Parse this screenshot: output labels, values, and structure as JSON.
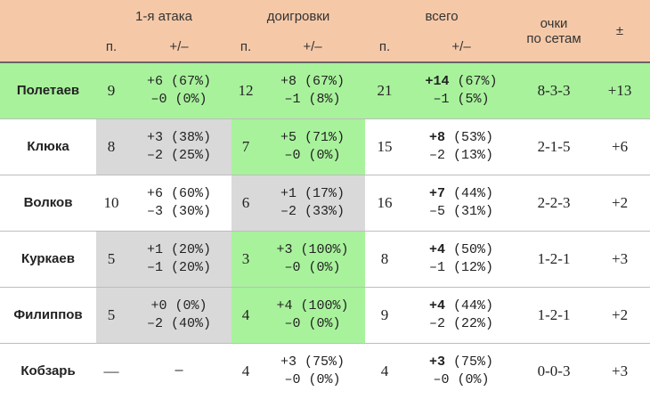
{
  "header": {
    "groups": [
      "1-я атака",
      "доигровки",
      "всего"
    ],
    "sub_n": "п.",
    "sub_pm": "+/–",
    "set_points": "очки\nпо сетам",
    "total": "±"
  },
  "rows": [
    {
      "name": "Полетаев",
      "a_n": "9",
      "a_plus": "+6 (67%)",
      "a_minus": "–0 (0%)",
      "d_n": "12",
      "d_plus": "+8 (67%)",
      "d_minus": "–1 (8%)",
      "t_n": "21",
      "t_plus_bold": "+14",
      "t_plus_rest": " (67%)",
      "t_minus": "–1 (5%)",
      "sets": "8-3-3",
      "total": "+13",
      "fill": "green"
    },
    {
      "name": "Клюка",
      "a_n": "8",
      "a_plus": "+3 (38%)",
      "a_minus": "–2 (25%)",
      "d_n": "7",
      "d_plus": "+5 (71%)",
      "d_minus": "–0 (0%)",
      "t_n": "15",
      "t_plus_bold": "+8",
      "t_plus_rest": " (53%)",
      "t_minus": "–2 (13%)",
      "sets": "2-1-5",
      "total": "+6",
      "fill": "attack-gray-digs-green"
    },
    {
      "name": "Волков",
      "a_n": "10",
      "a_plus": "+6 (60%)",
      "a_minus": "–3 (30%)",
      "d_n": "6",
      "d_plus": "+1 (17%)",
      "d_minus": "–2 (33%)",
      "t_n": "16",
      "t_plus_bold": "+7",
      "t_plus_rest": " (44%)",
      "t_minus": "–5 (31%)",
      "sets": "2-2-3",
      "total": "+2",
      "fill": "digs-gray"
    },
    {
      "name": "Куркаев",
      "a_n": "5",
      "a_plus": "+1 (20%)",
      "a_minus": "–1 (20%)",
      "d_n": "3",
      "d_plus": "+3 (100%)",
      "d_minus": "–0 (0%)",
      "t_n": "8",
      "t_plus_bold": "+4",
      "t_plus_rest": " (50%)",
      "t_minus": "–1 (12%)",
      "sets": "1-2-1",
      "total": "+3",
      "fill": "attack-gray-digs-green"
    },
    {
      "name": "Филиппов",
      "a_n": "5",
      "a_plus": "+0 (0%)",
      "a_minus": "–2 (40%)",
      "d_n": "4",
      "d_plus": "+4 (100%)",
      "d_minus": "–0 (0%)",
      "t_n": "9",
      "t_plus_bold": "+4",
      "t_plus_rest": " (44%)",
      "t_minus": "–2 (22%)",
      "sets": "1-2-1",
      "total": "+2",
      "fill": "attack-gray-digs-green"
    },
    {
      "name": "Кобзарь",
      "a_n": "—",
      "a_plus": "—",
      "a_minus": "",
      "d_n": "4",
      "d_plus": "+3 (75%)",
      "d_minus": "–0 (0%)",
      "t_n": "4",
      "t_plus_bold": "+3",
      "t_plus_rest": " (75%)",
      "t_minus": "–0 (0%)",
      "sets": "0-0-3",
      "total": "+3",
      "fill": "none"
    }
  ],
  "colors": {
    "header": "#f5c9a8",
    "green": "#a8f29c",
    "gray": "#d9d9d9"
  }
}
